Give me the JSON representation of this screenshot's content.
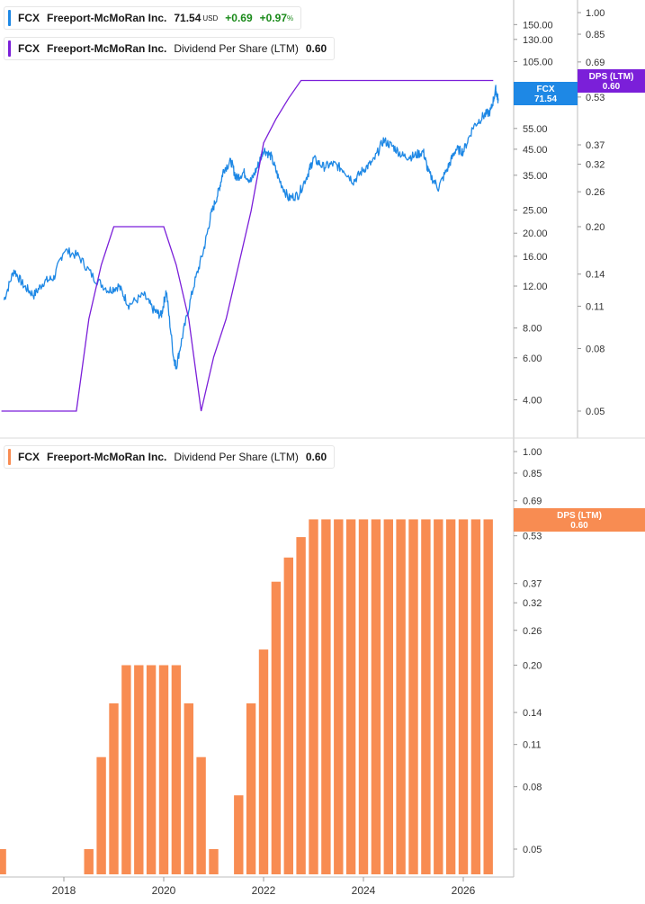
{
  "colors": {
    "price": "#1e88e5",
    "dps_line": "#7b1fd9",
    "dps_bar": "#f88c52",
    "positive": "#1a8a1a"
  },
  "legend_price": {
    "ticker": "FCX",
    "name": "Freeport-McMoRan Inc.",
    "price": "71.54",
    "currency": "USD",
    "change": "+0.69",
    "change_pct": "+0.97",
    "pct_sign": "%"
  },
  "legend_dps_top": {
    "ticker": "FCX",
    "name": "Freeport-McMoRan Inc.",
    "metric": "Dividend Per Share (LTM)",
    "value": "0.60"
  },
  "legend_dps_bottom": {
    "ticker": "FCX",
    "name": "Freeport-McMoRan Inc.",
    "metric": "Dividend Per Share (LTM)",
    "value": "0.60"
  },
  "badges": {
    "price_label": "FCX",
    "price_value": "71.54",
    "dps_top_label": "DPS (LTM)",
    "dps_top_value": "0.60",
    "dps_bottom_label": "DPS (LTM)",
    "dps_bottom_value": "0.60"
  },
  "chart_data": [
    {
      "type": "line",
      "title": "FCX Freeport-McMoRan Inc. price",
      "y_scale": "log",
      "y_ticks": [
        "150.00",
        "130.00",
        "105.00",
        "80.00",
        "55.00",
        "45.00",
        "35.00",
        "25.00",
        "20.00",
        "16.00",
        "12.00",
        "8.00",
        "6.00",
        "4.00"
      ],
      "series": [
        {
          "name": "FCX",
          "x": [
            2016.8,
            2017.0,
            2017.2,
            2017.4,
            2017.6,
            2017.8,
            2018.0,
            2018.3,
            2018.6,
            2018.9,
            2019.1,
            2019.3,
            2019.6,
            2019.8,
            2019.95,
            2020.05,
            2020.2,
            2020.25,
            2020.4,
            2020.6,
            2020.8,
            2020.95,
            2021.1,
            2021.2,
            2021.35,
            2021.45,
            2021.6,
            2021.75,
            2021.9,
            2022.0,
            2022.15,
            2022.3,
            2022.5,
            2022.7,
            2022.9,
            2023.0,
            2023.2,
            2023.4,
            2023.6,
            2023.8,
            2024.0,
            2024.2,
            2024.4,
            2024.6,
            2024.8,
            2025.0,
            2025.2,
            2025.3,
            2025.5,
            2025.7,
            2025.85,
            2026.0,
            2026.2,
            2026.4,
            2026.55,
            2026.65,
            2026.7
          ],
          "values": [
            10.5,
            14.0,
            12.0,
            11.0,
            12.5,
            13.0,
            17.0,
            16.0,
            13.0,
            11.5,
            12.0,
            10.0,
            11.0,
            9.5,
            9.0,
            11.5,
            6.0,
            5.5,
            7.8,
            12.0,
            17.0,
            24.0,
            30.0,
            37.0,
            40.0,
            34.0,
            36.0,
            33.0,
            39.0,
            45.0,
            42.0,
            34.0,
            28.0,
            29.0,
            36.0,
            41.0,
            38.0,
            39.0,
            37.0,
            33.0,
            37.0,
            40.0,
            49.0,
            46.0,
            42.0,
            42.0,
            44.0,
            36.0,
            31.0,
            38.0,
            45.0,
            44.0,
            56.0,
            62.0,
            65.0,
            80.0,
            72.0
          ]
        }
      ]
    },
    {
      "type": "line",
      "title": "FCX Dividend Per Share (LTM)",
      "y_scale": "log",
      "y_ticks": [
        "1.00",
        "0.85",
        "0.69",
        "0.53",
        "0.37",
        "0.32",
        "0.26",
        "0.20",
        "0.14",
        "0.11",
        "0.08",
        "0.05"
      ],
      "series": [
        {
          "name": "Dividend Per Share (LTM)",
          "x": [
            2016.75,
            2018.0,
            2018.25,
            2018.5,
            2018.75,
            2019.0,
            2019.25,
            2019.5,
            2019.75,
            2020.0,
            2020.25,
            2020.5,
            2020.75,
            2021.0,
            2021.25,
            2021.5,
            2021.75,
            2022.0,
            2022.25,
            2022.5,
            2022.75,
            2026.6
          ],
          "values": [
            0.05,
            0.05,
            0.05,
            0.1,
            0.15,
            0.2,
            0.2,
            0.2,
            0.2,
            0.2,
            0.15,
            0.1,
            0.05,
            0.075,
            0.1,
            0.15,
            0.225,
            0.375,
            0.45,
            0.525,
            0.6,
            0.6
          ]
        }
      ]
    },
    {
      "type": "bar",
      "title": "FCX Dividend Per Share (LTM)",
      "y_scale": "log",
      "y_ticks": [
        "1.00",
        "0.85",
        "0.69",
        "0.53",
        "0.37",
        "0.32",
        "0.26",
        "0.20",
        "0.14",
        "0.11",
        "0.08",
        "0.05"
      ],
      "x_ticks": [
        "2018",
        "2020",
        "2022",
        "2024",
        "2026"
      ],
      "categories": [
        "2016Q3",
        "2016Q4",
        "2017Q1",
        "2017Q2",
        "2017Q3",
        "2017Q4",
        "2018Q1",
        "2018Q2",
        "2018Q3",
        "2018Q4",
        "2019Q1",
        "2019Q2",
        "2019Q3",
        "2019Q4",
        "2020Q1",
        "2020Q2",
        "2020Q3",
        "2020Q4",
        "2021Q1",
        "2021Q2",
        "2021Q3",
        "2021Q4",
        "2022Q1",
        "2022Q2",
        "2022Q3",
        "2022Q4",
        "2023Q1",
        "2023Q2",
        "2023Q3",
        "2023Q4",
        "2024Q1",
        "2024Q2",
        "2024Q3",
        "2024Q4",
        "2025Q1",
        "2025Q2",
        "2025Q3",
        "2025Q4",
        "2026Q1",
        "2026Q2"
      ],
      "values": [
        0.05,
        0,
        0,
        0,
        0,
        0,
        0,
        0.05,
        0.1,
        0.15,
        0.2,
        0.2,
        0.2,
        0.2,
        0.2,
        0.15,
        0.1,
        0.05,
        0,
        0.075,
        0.15,
        0.225,
        0.375,
        0.45,
        0.525,
        0.6,
        0.6,
        0.6,
        0.6,
        0.6,
        0.6,
        0.6,
        0.6,
        0.6,
        0.6,
        0.6,
        0.6,
        0.6,
        0.6,
        0.6
      ]
    }
  ]
}
